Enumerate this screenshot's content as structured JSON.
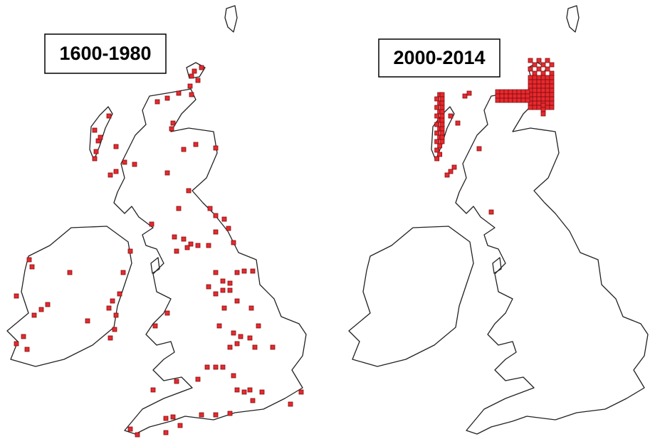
{
  "maps": [
    {
      "label": "1600-1980"
    },
    {
      "label": "2000-2014"
    }
  ]
}
